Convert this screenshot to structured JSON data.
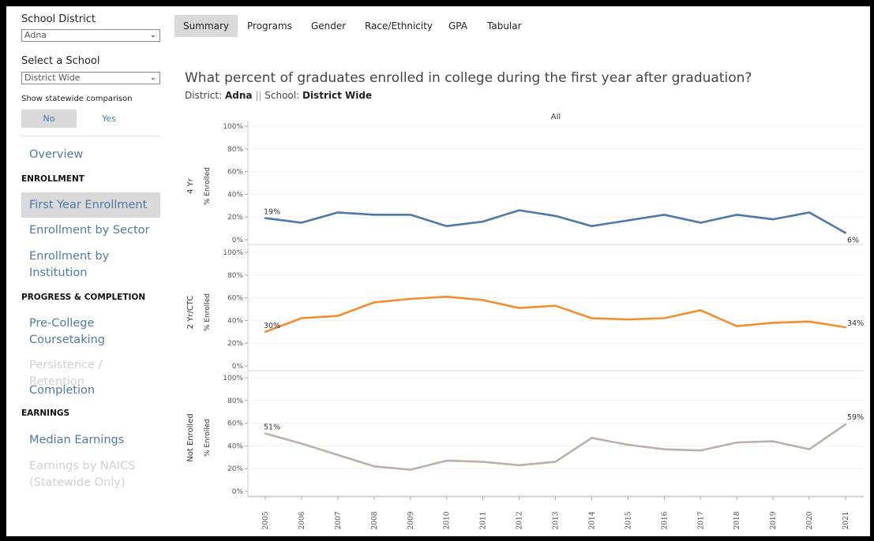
{
  "sidebar": {
    "district_label": "School District",
    "district_value": "Adna",
    "school_label": "Select a School",
    "school_value": "District Wide",
    "statewide_label": "Show statewide comparison",
    "toggle_no": "No",
    "toggle_yes": "Yes",
    "nav": {
      "overview": "Overview",
      "enrollment_header": "ENROLLMENT",
      "first_year": "First Year Enrollment",
      "by_sector": "Enrollment by Sector",
      "by_institution": "Enrollment by Institution",
      "progress_header": "PROGRESS & COMPLETION",
      "precollege": "Pre-College Coursetaking",
      "persistence": "Persistence / Retention",
      "completion": "Completion",
      "earnings_header": "EARNINGS",
      "median_earnings": "Median Earnings",
      "naics": "Earnings by NAICS (Statewide Only)"
    }
  },
  "tabs": [
    "Summary",
    "Programs",
    "Gender",
    "Race/Ethnicity",
    "GPA",
    "Tabular"
  ],
  "header": {
    "title": "What percent of graduates enrolled in college during the first year after graduation?",
    "district_label": "District:",
    "district_value": "Adna",
    "separator": "||",
    "school_label": "School:",
    "school_value": "District Wide"
  },
  "chart_data": {
    "type": "line",
    "column_header": "All",
    "x": [
      "2005",
      "2006",
      "2007",
      "2008",
      "2009",
      "2010",
      "2011",
      "2012",
      "2013",
      "2014",
      "2015",
      "2016",
      "2017",
      "2018",
      "2019",
      "2020",
      "2021"
    ],
    "y_ticks": [
      "100%",
      "80%",
      "60%",
      "40%",
      "20%",
      "0%"
    ],
    "ylim": [
      0,
      100
    ],
    "grid": true,
    "series": [
      {
        "name": "4 Yr",
        "axis_label": "% Enrolled",
        "color": "#4e79a7",
        "values": [
          19,
          15,
          24,
          22,
          22,
          12,
          16,
          26,
          21,
          12,
          17,
          22,
          15,
          22,
          18,
          24,
          6
        ],
        "start_label": "19%",
        "end_label": "6%"
      },
      {
        "name": "2 Yr/CTC",
        "axis_label": "% Enrolled",
        "color": "#f28e2b",
        "values": [
          30,
          42,
          44,
          56,
          59,
          61,
          58,
          51,
          53,
          42,
          41,
          42,
          49,
          35,
          38,
          39,
          34
        ],
        "start_label": "30%",
        "end_label": "34%"
      },
      {
        "name": "Not Enrolled",
        "axis_label": "% Enrolled",
        "color": "#bab0ac",
        "values": [
          51,
          42,
          32,
          22,
          19,
          27,
          26,
          23,
          26,
          47,
          41,
          37,
          36,
          43,
          44,
          37,
          59
        ],
        "start_label": "51%",
        "end_label": "59%"
      }
    ]
  }
}
